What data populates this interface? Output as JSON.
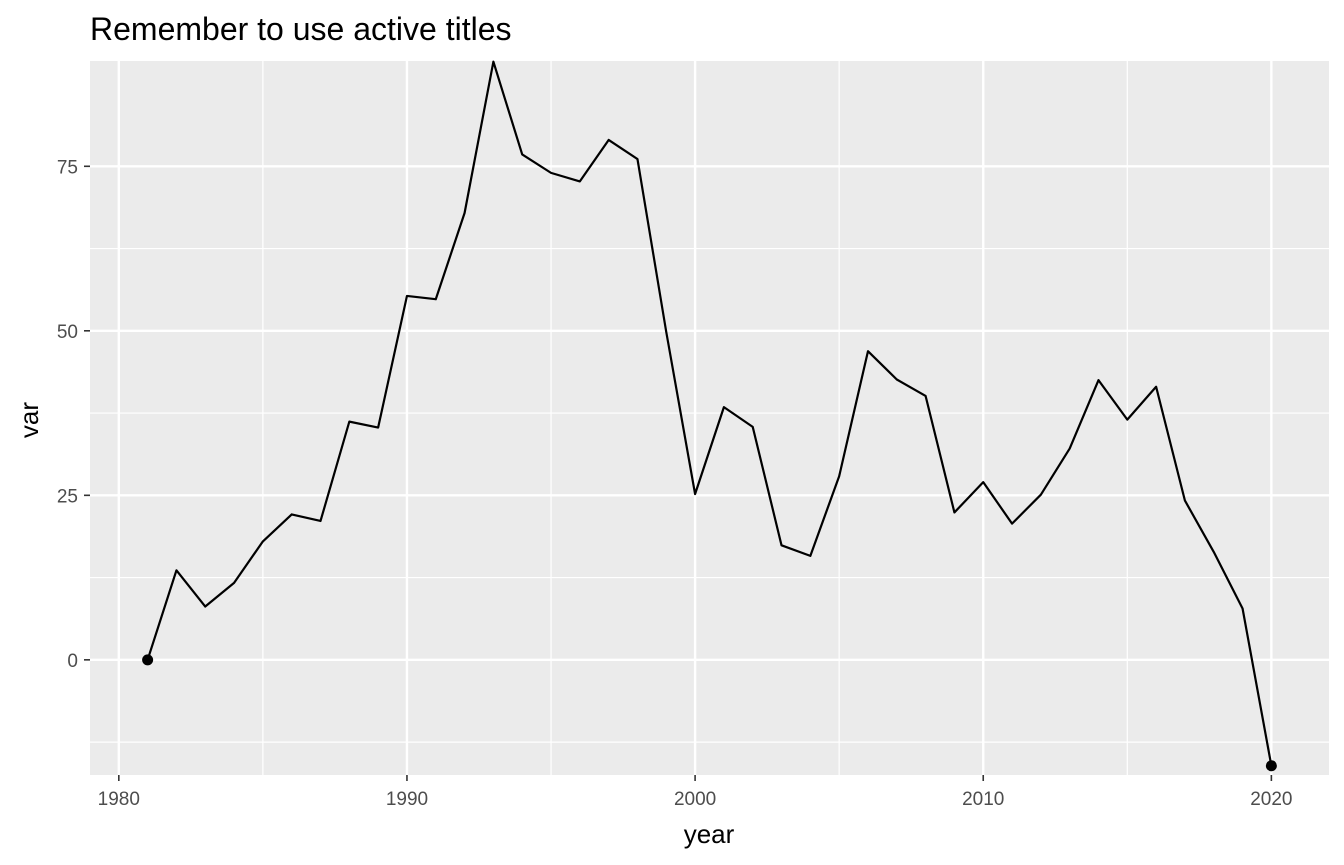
{
  "chart_data": {
    "type": "line",
    "title": "Remember to use active titles",
    "xlabel": "year",
    "ylabel": "var",
    "xlim": [
      1979,
      2022
    ],
    "ylim": [
      -17.5,
      91
    ],
    "x_ticks": [
      1980,
      1990,
      2000,
      2010,
      2020
    ],
    "y_ticks": [
      0,
      25,
      50,
      75
    ],
    "grid": true,
    "panel_background": "#EBEBEB",
    "grid_color": "#FFFFFF",
    "line_color": "#000000",
    "series": [
      {
        "x": [
          1981,
          1982,
          1983,
          1984,
          1985,
          1986,
          1987,
          1988,
          1989,
          1990,
          1991,
          1992,
          1993,
          1994,
          1995,
          1996,
          1997,
          1998,
          1999,
          2000,
          2001,
          2002,
          2003,
          2004,
          2005,
          2006,
          2007,
          2008,
          2009,
          2010,
          2011,
          2012,
          2013,
          2014,
          2015,
          2016,
          2017,
          2018,
          2019,
          2020
        ],
        "values": [
          0.0,
          13.6,
          8.1,
          11.7,
          18.0,
          22.1,
          21.1,
          36.2,
          35.3,
          55.3,
          54.8,
          67.9,
          90.9,
          76.8,
          74.0,
          72.7,
          79.0,
          76.1,
          49.8,
          25.2,
          38.4,
          35.4,
          17.4,
          15.8,
          27.9,
          46.9,
          42.6,
          40.1,
          22.4,
          27.0,
          20.7,
          25.1,
          32.1,
          42.5,
          36.5,
          41.5,
          24.2,
          16.4,
          7.8,
          -16.1
        ]
      }
    ],
    "highlighted_points": [
      {
        "x": 1981,
        "y": 0.0
      },
      {
        "x": 2020,
        "y": -16.1
      }
    ]
  }
}
